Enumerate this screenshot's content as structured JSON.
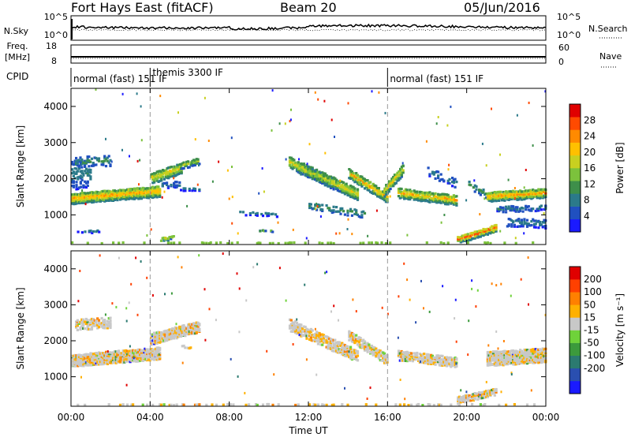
{
  "header": {
    "radar": "Fort Hays East (fitACF)",
    "beam": "Beam 20",
    "date": "05/Jun/2016"
  },
  "summary": {
    "nsky_label": "N.Sky",
    "nsky_ticks": [
      "10^5",
      "10^0"
    ],
    "nsearch_label": "N.Search",
    "nsearch_ticks": [
      "10^5",
      "10^0"
    ],
    "freq_label_line1": "Freq.",
    "freq_label_line2": "[MHz]",
    "freq_ticks": [
      "18",
      "8"
    ],
    "nave_label": "Nave",
    "nave_ticks": [
      "60",
      "0"
    ],
    "cpid_label": "CPID",
    "cpid_segments": [
      {
        "label": "normal (fast) 151 IF",
        "start_hour": 0
      },
      {
        "label": "themis 3300 IF",
        "start_hour": 4
      },
      {
        "label": "normal (fast) 151 IF",
        "start_hour": 16
      }
    ]
  },
  "chart_data": [
    {
      "type": "heatmap",
      "parameter": "Power",
      "ylabel": "Slant Range [km]",
      "yticks": [
        1000,
        2000,
        3000,
        4000
      ],
      "ylim": [
        180,
        4500
      ],
      "xlim": [
        0,
        24
      ],
      "colorbar_label": "Power [dB]",
      "colorbar_ticks": [
        4,
        8,
        12,
        16,
        20,
        24,
        28
      ],
      "colorbar_range": [
        0,
        32
      ],
      "colors": [
        "#1a1aff",
        "#2050c0",
        "#2b7a8a",
        "#3e8f4a",
        "#7cc23c",
        "#c8d020",
        "#ffc000",
        "#ff8a00",
        "#ff4a00",
        "#e00000"
      ],
      "regions": [
        {
          "t0": 0.0,
          "t1": 4.5,
          "r0": 1500,
          "r1": 1700,
          "jitter": 150,
          "pmax": 26,
          "dens": 0.92
        },
        {
          "t0": 0.0,
          "t1": 1.0,
          "r0": 2150,
          "r1": 2200,
          "jitter": 400,
          "pmax": 10,
          "dens": 0.35
        },
        {
          "t0": 0.2,
          "t1": 2.0,
          "r0": 2500,
          "r1": 2550,
          "jitter": 150,
          "pmax": 12,
          "dens": 0.25
        },
        {
          "t0": 4.0,
          "t1": 5.6,
          "r0": 2050,
          "r1": 2350,
          "jitter": 150,
          "pmax": 22,
          "dens": 0.7
        },
        {
          "t0": 5.5,
          "t1": 6.5,
          "r0": 2400,
          "r1": 2550,
          "jitter": 100,
          "pmax": 18,
          "dens": 0.6
        },
        {
          "t0": 4.5,
          "t1": 5.5,
          "r0": 1850,
          "r1": 1900,
          "jitter": 80,
          "pmax": 10,
          "dens": 0.35
        },
        {
          "t0": 5.5,
          "t1": 6.5,
          "r0": 1750,
          "r1": 1750,
          "jitter": 30,
          "pmax": 8,
          "dens": 0.6
        },
        {
          "t0": 11.0,
          "t1": 14.5,
          "r0": 2500,
          "r1": 1600,
          "jitter": 160,
          "pmax": 22,
          "dens": 0.75
        },
        {
          "t0": 11.5,
          "t1": 13.5,
          "r0": 2350,
          "r1": 1850,
          "jitter": 160,
          "pmax": 20,
          "dens": 0.55
        },
        {
          "t0": 12.0,
          "t1": 15.0,
          "r0": 1300,
          "r1": 1050,
          "jitter": 100,
          "pmax": 12,
          "dens": 0.4
        },
        {
          "t0": 14.0,
          "t1": 16.0,
          "r0": 2200,
          "r1": 1500,
          "jitter": 140,
          "pmax": 24,
          "dens": 0.8
        },
        {
          "t0": 15.8,
          "t1": 16.8,
          "r0": 1700,
          "r1": 2350,
          "jitter": 150,
          "pmax": 22,
          "dens": 0.75
        },
        {
          "t0": 16.5,
          "t1": 19.5,
          "r0": 1650,
          "r1": 1450,
          "jitter": 140,
          "pmax": 24,
          "dens": 0.8
        },
        {
          "t0": 18.0,
          "t1": 19.5,
          "r0": 2250,
          "r1": 1900,
          "jitter": 120,
          "pmax": 10,
          "dens": 0.35
        },
        {
          "t0": 20.0,
          "t1": 21.0,
          "r0": 1900,
          "r1": 1600,
          "jitter": 100,
          "pmax": 12,
          "dens": 0.3
        },
        {
          "t0": 21.0,
          "t1": 24.0,
          "r0": 1550,
          "r1": 1650,
          "jitter": 130,
          "pmax": 26,
          "dens": 0.85
        },
        {
          "t0": 21.5,
          "t1": 24.0,
          "r0": 1200,
          "r1": 1250,
          "jitter": 80,
          "pmax": 10,
          "dens": 0.5
        },
        {
          "t0": 22.0,
          "t1": 24.0,
          "r0": 850,
          "r1": 800,
          "jitter": 120,
          "pmax": 10,
          "dens": 0.45
        },
        {
          "t0": 19.5,
          "t1": 21.5,
          "r0": 350,
          "r1": 700,
          "jitter": 100,
          "pmax": 28,
          "dens": 0.9
        },
        {
          "t0": 4.5,
          "t1": 5.2,
          "r0": 350,
          "r1": 450,
          "jitter": 60,
          "pmax": 22,
          "dens": 0.6
        },
        {
          "t0": 8.5,
          "t1": 10.5,
          "r0": 1100,
          "r1": 1050,
          "jitter": 50,
          "pmax": 8,
          "dens": 0.45
        },
        {
          "t0": 0.0,
          "t1": 24.0,
          "r0": 250,
          "r1": 250,
          "jitter": 40,
          "pmax": 16,
          "dens": 0.35
        },
        {
          "t0": 0.3,
          "t1": 1.5,
          "r0": 580,
          "r1": 580,
          "jitter": 30,
          "pmax": 8,
          "dens": 0.4
        },
        {
          "t0": 9.5,
          "t1": 10.2,
          "r0": 600,
          "r1": 600,
          "jitter": 25,
          "pmax": 14,
          "dens": 0.7
        }
      ]
    },
    {
      "type": "heatmap",
      "parameter": "Velocity",
      "ylabel": "Slant Range [km]",
      "yticks": [
        1000,
        2000,
        3000,
        4000
      ],
      "ylim": [
        180,
        4500
      ],
      "xlim": [
        0,
        24
      ],
      "colorbar_label": "Velocity [m s⁻¹]",
      "colorbar_ticks": [
        200,
        100,
        50,
        15,
        -15,
        -50,
        -100,
        -200
      ],
      "colors": [
        "#1a1aff",
        "#2a4fb0",
        "#2b7a70",
        "#3c9a3c",
        "#6fd23a",
        "#c8c8c8",
        "#ffb000",
        "#ff8000",
        "#ff4000",
        "#e00000"
      ],
      "regions": [
        {
          "t0": 0.0,
          "t1": 4.5,
          "r0": 1500,
          "r1": 1700,
          "jitter": 170,
          "dens": 0.9
        },
        {
          "t0": 0.2,
          "t1": 2.0,
          "r0": 2500,
          "r1": 2550,
          "jitter": 150,
          "dens": 0.5
        },
        {
          "t0": 4.0,
          "t1": 6.5,
          "r0": 2100,
          "r1": 2450,
          "jitter": 160,
          "dens": 0.85
        },
        {
          "t0": 11.0,
          "t1": 14.5,
          "r0": 2500,
          "r1": 1600,
          "jitter": 170,
          "dens": 0.6
        },
        {
          "t0": 14.0,
          "t1": 16.0,
          "r0": 2200,
          "r1": 1500,
          "jitter": 140,
          "dens": 0.7
        },
        {
          "t0": 16.5,
          "t1": 19.5,
          "r0": 1650,
          "r1": 1450,
          "jitter": 140,
          "dens": 0.8
        },
        {
          "t0": 21.0,
          "t1": 24.0,
          "r0": 1550,
          "r1": 1650,
          "jitter": 200,
          "dens": 0.9
        },
        {
          "t0": 19.5,
          "t1": 21.5,
          "r0": 400,
          "r1": 650,
          "jitter": 100,
          "dens": 0.85
        },
        {
          "t0": 0.0,
          "t1": 24.0,
          "r0": 250,
          "r1": 250,
          "jitter": 40,
          "dens": 0.4
        },
        {
          "t0": 5.5,
          "t1": 6.2,
          "r0": 1900,
          "r1": 1800,
          "jitter": 30,
          "dens": 0.5
        }
      ]
    }
  ],
  "x_axis": {
    "label": "Time UT",
    "ticks": [
      "00:00",
      "04:00",
      "08:00",
      "12:00",
      "16:00",
      "20:00",
      "00:00"
    ]
  }
}
